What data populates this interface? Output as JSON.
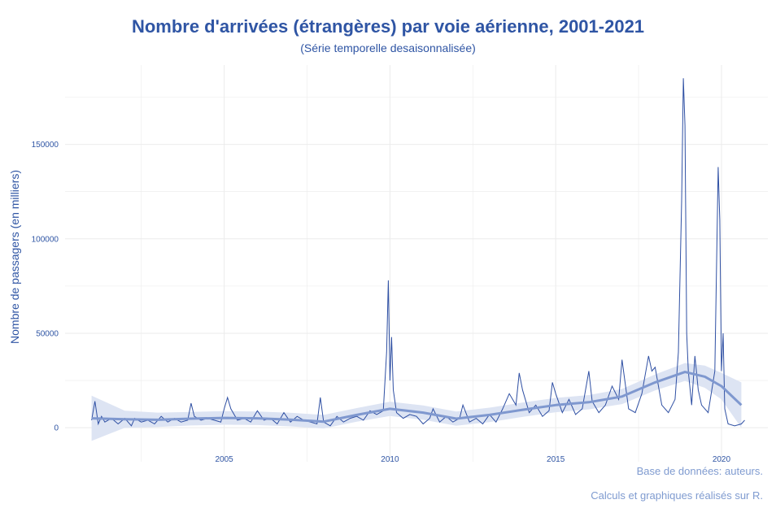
{
  "chart_data": {
    "type": "line",
    "title": "Nombre d'arrivées (étrangères) par voie aérienne, 2001-2021",
    "subtitle": "(Série temporelle desaisonnalisée)",
    "xlabel": "",
    "ylabel": "Nombre de passagers (en milliers)",
    "caption": [
      "Base de données: auteurs.",
      "Calculs et graphiques réalisés sur R."
    ],
    "xlim": [
      2000.2,
      2021.4
    ],
    "ylim": [
      -18000,
      192000
    ],
    "x_ticks": [
      2005,
      2010,
      2015,
      2020
    ],
    "y_ticks": [
      0,
      50000,
      100000,
      150000
    ],
    "grid": true,
    "colors": {
      "series": "#2e4fa3",
      "smooth": "#7f98cf",
      "band": "#dde4f3",
      "text": "#2f55a4",
      "caption": "#7f9bd0"
    },
    "series": [
      {
        "points": [
          [
            2001.0,
            4000
          ],
          [
            2001.1,
            14000
          ],
          [
            2001.2,
            2000
          ],
          [
            2001.3,
            6000
          ],
          [
            2001.4,
            3000
          ],
          [
            2001.6,
            5000
          ],
          [
            2001.8,
            2000
          ],
          [
            2002.0,
            5000
          ],
          [
            2002.2,
            1000
          ],
          [
            2002.3,
            5000
          ],
          [
            2002.5,
            3000
          ],
          [
            2002.7,
            4000
          ],
          [
            2002.9,
            2000
          ],
          [
            2003.1,
            6000
          ],
          [
            2003.3,
            3000
          ],
          [
            2003.5,
            5000
          ],
          [
            2003.7,
            3000
          ],
          [
            2003.9,
            4000
          ],
          [
            2004.0,
            13000
          ],
          [
            2004.1,
            6000
          ],
          [
            2004.3,
            4000
          ],
          [
            2004.5,
            5000
          ],
          [
            2004.7,
            4000
          ],
          [
            2004.9,
            3000
          ],
          [
            2005.0,
            10000
          ],
          [
            2005.1,
            16000
          ],
          [
            2005.2,
            10000
          ],
          [
            2005.4,
            4000
          ],
          [
            2005.6,
            5000
          ],
          [
            2005.8,
            3000
          ],
          [
            2006.0,
            9000
          ],
          [
            2006.2,
            4000
          ],
          [
            2006.4,
            5000
          ],
          [
            2006.6,
            2000
          ],
          [
            2006.8,
            8000
          ],
          [
            2007.0,
            3000
          ],
          [
            2007.2,
            6000
          ],
          [
            2007.4,
            4000
          ],
          [
            2007.6,
            3000
          ],
          [
            2007.8,
            2000
          ],
          [
            2007.9,
            16000
          ],
          [
            2008.0,
            3000
          ],
          [
            2008.2,
            1000
          ],
          [
            2008.4,
            6000
          ],
          [
            2008.6,
            3000
          ],
          [
            2008.8,
            5000
          ],
          [
            2009.0,
            6000
          ],
          [
            2009.2,
            4000
          ],
          [
            2009.4,
            9000
          ],
          [
            2009.6,
            7000
          ],
          [
            2009.8,
            9000
          ],
          [
            2009.9,
            40000
          ],
          [
            2009.95,
            78000
          ],
          [
            2010.0,
            25000
          ],
          [
            2010.05,
            48000
          ],
          [
            2010.1,
            20000
          ],
          [
            2010.2,
            8000
          ],
          [
            2010.4,
            5000
          ],
          [
            2010.6,
            7000
          ],
          [
            2010.8,
            6000
          ],
          [
            2011.0,
            2000
          ],
          [
            2011.2,
            5000
          ],
          [
            2011.3,
            10000
          ],
          [
            2011.5,
            3000
          ],
          [
            2011.7,
            6000
          ],
          [
            2011.9,
            3000
          ],
          [
            2012.1,
            5000
          ],
          [
            2012.2,
            12000
          ],
          [
            2012.4,
            3000
          ],
          [
            2012.6,
            5000
          ],
          [
            2012.8,
            2000
          ],
          [
            2013.0,
            7000
          ],
          [
            2013.2,
            3000
          ],
          [
            2013.4,
            10000
          ],
          [
            2013.6,
            18000
          ],
          [
            2013.8,
            12000
          ],
          [
            2013.9,
            29000
          ],
          [
            2014.0,
            20000
          ],
          [
            2014.2,
            8000
          ],
          [
            2014.4,
            12000
          ],
          [
            2014.6,
            6000
          ],
          [
            2014.8,
            9000
          ],
          [
            2014.9,
            24000
          ],
          [
            2015.0,
            18000
          ],
          [
            2015.2,
            8000
          ],
          [
            2015.4,
            15000
          ],
          [
            2015.6,
            7000
          ],
          [
            2015.8,
            10000
          ],
          [
            2016.0,
            30000
          ],
          [
            2016.1,
            14000
          ],
          [
            2016.3,
            8000
          ],
          [
            2016.5,
            12000
          ],
          [
            2016.7,
            22000
          ],
          [
            2016.9,
            15000
          ],
          [
            2017.0,
            36000
          ],
          [
            2017.2,
            10000
          ],
          [
            2017.4,
            8000
          ],
          [
            2017.6,
            18000
          ],
          [
            2017.8,
            38000
          ],
          [
            2017.9,
            30000
          ],
          [
            2018.0,
            32000
          ],
          [
            2018.2,
            12000
          ],
          [
            2018.4,
            8000
          ],
          [
            2018.6,
            15000
          ],
          [
            2018.7,
            40000
          ],
          [
            2018.8,
            120000
          ],
          [
            2018.85,
            185000
          ],
          [
            2018.9,
            160000
          ],
          [
            2018.95,
            50000
          ],
          [
            2019.0,
            30000
          ],
          [
            2019.1,
            12000
          ],
          [
            2019.2,
            38000
          ],
          [
            2019.3,
            20000
          ],
          [
            2019.4,
            12000
          ],
          [
            2019.6,
            8000
          ],
          [
            2019.8,
            30000
          ],
          [
            2019.9,
            138000
          ],
          [
            2019.95,
            110000
          ],
          [
            2020.0,
            30000
          ],
          [
            2020.05,
            50000
          ],
          [
            2020.1,
            10000
          ],
          [
            2020.2,
            2000
          ],
          [
            2020.4,
            1000
          ],
          [
            2020.6,
            2000
          ],
          [
            2020.7,
            4000
          ]
        ]
      }
    ],
    "smooth": [
      [
        2001.0,
        5000
      ],
      [
        2002.0,
        4500
      ],
      [
        2003.0,
        4200
      ],
      [
        2004.0,
        4800
      ],
      [
        2005.0,
        5200
      ],
      [
        2006.0,
        5000
      ],
      [
        2007.0,
        4300
      ],
      [
        2008.0,
        3200
      ],
      [
        2009.0,
        6800
      ],
      [
        2010.0,
        10000
      ],
      [
        2011.0,
        8000
      ],
      [
        2012.0,
        4800
      ],
      [
        2013.0,
        6800
      ],
      [
        2014.0,
        9500
      ],
      [
        2015.0,
        12000
      ],
      [
        2016.0,
        13500
      ],
      [
        2017.0,
        16500
      ],
      [
        2018.0,
        24000
      ],
      [
        2018.9,
        29500
      ],
      [
        2019.5,
        27000
      ],
      [
        2020.0,
        22000
      ],
      [
        2020.6,
        12000
      ]
    ],
    "band_halfwidth": [
      [
        2001.0,
        12000
      ],
      [
        2002.0,
        4500
      ],
      [
        2003.0,
        3800
      ],
      [
        2004.0,
        3600
      ],
      [
        2005.0,
        3600
      ],
      [
        2006.0,
        3600
      ],
      [
        2007.0,
        3600
      ],
      [
        2008.0,
        3600
      ],
      [
        2009.0,
        3600
      ],
      [
        2010.0,
        3800
      ],
      [
        2011.0,
        3800
      ],
      [
        2012.0,
        3800
      ],
      [
        2013.0,
        3800
      ],
      [
        2014.0,
        3800
      ],
      [
        2015.0,
        3800
      ],
      [
        2016.0,
        3800
      ],
      [
        2017.0,
        4000
      ],
      [
        2018.0,
        4200
      ],
      [
        2019.0,
        4800
      ],
      [
        2020.0,
        7000
      ],
      [
        2020.6,
        12000
      ]
    ]
  }
}
